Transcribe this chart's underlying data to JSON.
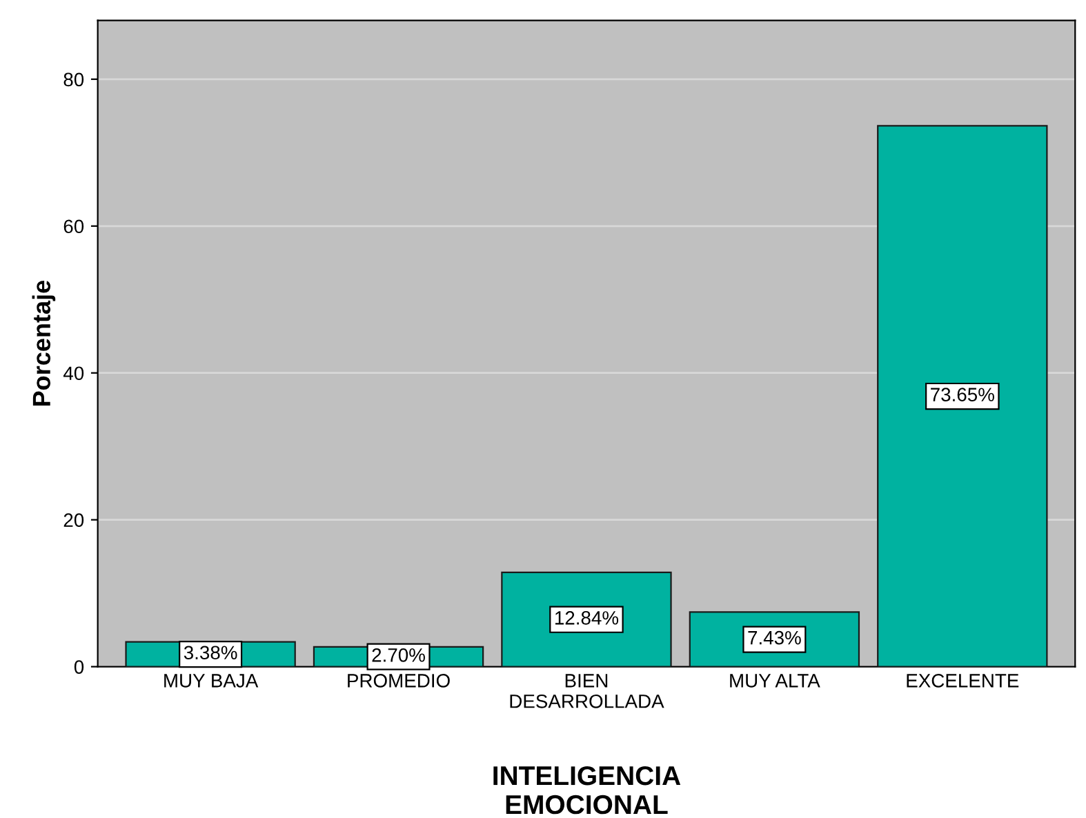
{
  "chart_data": {
    "type": "bar",
    "xlabel": "INTELIGENCIA\nEMOCIONAL",
    "ylabel": "Porcentaje",
    "categories": [
      "MUY BAJA",
      "PROMEDIO",
      "BIEN\nDESARROLLADA",
      "MUY ALTA",
      "EXCELENTE"
    ],
    "values": [
      3.38,
      2.7,
      12.84,
      7.43,
      73.65
    ],
    "value_labels": [
      "3.38%",
      "2.70%",
      "12.84%",
      "7.43%",
      "73.65%"
    ],
    "color": "#00b2a0",
    "ylim": [
      0,
      88
    ],
    "yticks": [
      0,
      20,
      40,
      60,
      80
    ],
    "grid": "y"
  }
}
